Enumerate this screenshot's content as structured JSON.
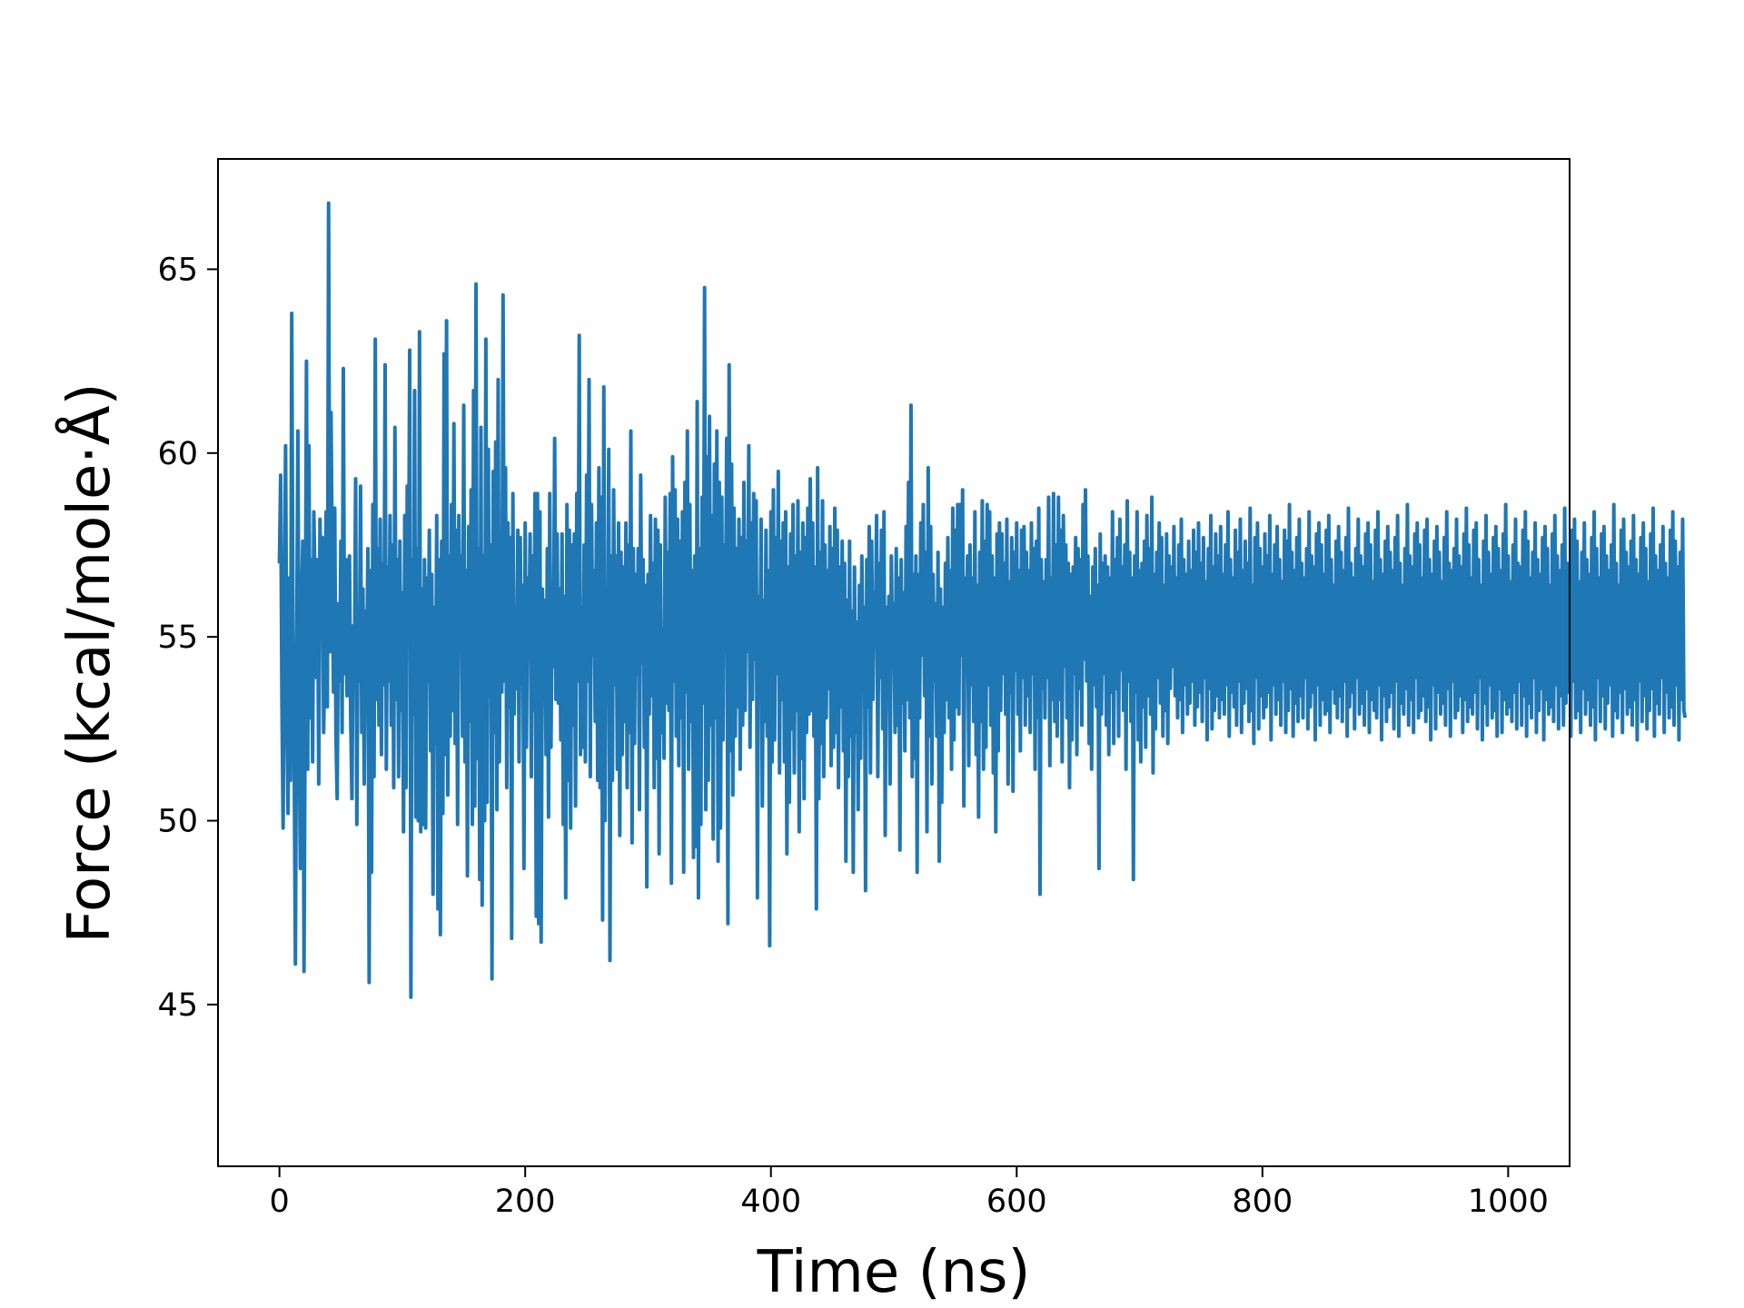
{
  "chart_data": {
    "type": "line",
    "title": "",
    "xlabel": "Time (ns)",
    "ylabel": "Force (kcal/mole·Å)",
    "xlim": [
      -50,
      1050
    ],
    "ylim": [
      40.6,
      68.0
    ],
    "grid": false,
    "x_ticks": [
      0,
      200,
      400,
      600,
      800,
      1000
    ],
    "x_tick_labels": [
      "0",
      "200",
      "400",
      "600",
      "800",
      "1000"
    ],
    "y_ticks": [
      45,
      50,
      55,
      60,
      65
    ],
    "y_tick_labels": [
      "45",
      "50",
      "55",
      "60",
      "65"
    ],
    "series": [
      {
        "color": "#1f77b4",
        "x_start": 0,
        "x_step": 1,
        "values": [
          57.0,
          59.4,
          53.4,
          49.8,
          55.7,
          60.2,
          53.1,
          50.2,
          56.6,
          51.1,
          63.8,
          55.2,
          51.8,
          46.1,
          54.3,
          60.6,
          52.9,
          48.7,
          55.9,
          57.6,
          45.9,
          53.8,
          62.5,
          51.4,
          60.2,
          52.8,
          57.1,
          51.6,
          58.4,
          56.3,
          53.9,
          57.1,
          51.0,
          58.2,
          55.3,
          57.7,
          52.4,
          54.8,
          58.4,
          53.1,
          66.8,
          54.6,
          61.1,
          56.9,
          53.5,
          58.5,
          52.3,
          50.6,
          55.9,
          53.8,
          57.6,
          52.4,
          62.3,
          54.0,
          57.1,
          53.4,
          56.8,
          57.2,
          52.8,
          50.6,
          55.3,
          53.7,
          59.3,
          49.9,
          55.8,
          53.8,
          59.1,
          52.4,
          56.3,
          51.0,
          55.7,
          53.9,
          57.4,
          45.6,
          56.8,
          48.6,
          58.6,
          51.2,
          63.1,
          53.3,
          57.4,
          52.6,
          58.2,
          51.8,
          57.0,
          53.7,
          62.4,
          51.4,
          56.9,
          53.8,
          58.3,
          52.6,
          57.5,
          50.9,
          60.7,
          53.3,
          57.1,
          51.2,
          57.6,
          53.0,
          56.2,
          49.7,
          58.3,
          50.9,
          59.1,
          55.2,
          62.8,
          45.2,
          57.1,
          52.9,
          61.7,
          50.1,
          57.4,
          50.0,
          63.3,
          49.7,
          56.3,
          49.9,
          57.1,
          49.8,
          56.6,
          53.8,
          57.9,
          51.9,
          56.7,
          48.0,
          55.8,
          52.1,
          58.3,
          47.6,
          57.1,
          46.9,
          57.6,
          50.2,
          62.7,
          51.8,
          63.6,
          50.7,
          57.2,
          52.3,
          58.6,
          53.0,
          60.8,
          52.1,
          57.9,
          49.9,
          58.3,
          54.6,
          57.2,
          52.3,
          61.3,
          51.6,
          56.8,
          48.5,
          58.0,
          52.7,
          59.0,
          49.9,
          61.7,
          50.4,
          64.6,
          51.7,
          57.4,
          48.4,
          60.7,
          47.7,
          57.2,
          50.0,
          63.1,
          50.5,
          60.1,
          53.4,
          57.5,
          45.7,
          59.5,
          52.4,
          60.3,
          50.3,
          62.0,
          51.6,
          57.5,
          53.5,
          64.3,
          53.8,
          59.6,
          50.9,
          58.1,
          53.1,
          57.7,
          46.8,
          58.9,
          52.9,
          55.8,
          53.6,
          57.9,
          51.6,
          57.7,
          53.7,
          56.4,
          48.7,
          58.1,
          52.0,
          56.6,
          54.7,
          57.8,
          51.2,
          57.2,
          53.0,
          58.9,
          47.4,
          58.9,
          47.2,
          58.4,
          46.7,
          56.3,
          54.1,
          56.0,
          51.8,
          57.4,
          50.1,
          58.9,
          52.0,
          56.3,
          54.2,
          60.4,
          53.3,
          57.8,
          53.2,
          56.3,
          52.2,
          57.8,
          49.9,
          56.1,
          47.9,
          58.6,
          51.1,
          57.9,
          49.8,
          57.5,
          52.6,
          57.8,
          50.4,
          58.9,
          53.8,
          63.2,
          51.8,
          55.8,
          52.0,
          57.5,
          51.6,
          59.4,
          53.8,
          62.0,
          51.2,
          58.6,
          54.5,
          56.8,
          52.7,
          58.1,
          51.1,
          59.6,
          50.9,
          58.8,
          47.3,
          61.8,
          50.0,
          56.3,
          53.2,
          60.1,
          46.2,
          57.2,
          51.1,
          59.0,
          53.7,
          57.2,
          51.4,
          58.1,
          49.6,
          57.3,
          51.8,
          56.9,
          52.7,
          58.1,
          50.9,
          57.5,
          52.4,
          60.6,
          49.4,
          57.4,
          52.1,
          56.7,
          54.0,
          57.4,
          50.3,
          59.4,
          54.3,
          57.1,
          52.0,
          56.4,
          48.2,
          56.7,
          52.9,
          58.3,
          53.4,
          57.0,
          50.9,
          58.2,
          51.7,
          57.9,
          49.1,
          57.5,
          52.4,
          55.2,
          51.7,
          58.8,
          53.2,
          57.3,
          53.0,
          58.9,
          48.3,
          59.9,
          53.8,
          59.0,
          52.3,
          58.2,
          51.5,
          57.6,
          52.8,
          58.4,
          48.6,
          59.2,
          53.5,
          60.6,
          51.4,
          58.6,
          52.7,
          56.8,
          49.0,
          57.2,
          49.3,
          61.4,
          47.9,
          57.4,
          49.9,
          58.8,
          53.2,
          64.5,
          50.3,
          59.9,
          51.1,
          61.0,
          52.6,
          58.3,
          49.5,
          59.7,
          52.8,
          60.6,
          48.9,
          59.2,
          49.8,
          58.8,
          52.2,
          57.5,
          55.1,
          60.4,
          47.2,
          62.4,
          51.9,
          59.7,
          50.7,
          58.5,
          52.3,
          57.4,
          53.1,
          58.2,
          51.4,
          57.7,
          52.6,
          59.2,
          53.0,
          57.6,
          54.6,
          60.2,
          52.0,
          58.1,
          53.3,
          58.9,
          54.4,
          58.7,
          47.9,
          56.1,
          53.9,
          58.2,
          50.4,
          56.0,
          52.7,
          57.9,
          52.3,
          56.8,
          46.6,
          58.4,
          51.6,
          59.0,
          52.2,
          57.7,
          54.0,
          59.5,
          51.3,
          57.6,
          53.3,
          58.1,
          51.6,
          58.4,
          49.1,
          56.9,
          50.5,
          57.8,
          52.5,
          58.6,
          51.3,
          57.2,
          53.0,
          58.7,
          49.7,
          57.3,
          51.7,
          58.1,
          50.6,
          57.7,
          52.4,
          58.5,
          52.9,
          59.3,
          53.0,
          58.1,
          52.3,
          56.9,
          47.6,
          59.6,
          50.6,
          57.3,
          52.1,
          58.7,
          51.2,
          57.5,
          52.8,
          56.8,
          53.6,
          58.0,
          51.5,
          57.4,
          52.0,
          58.5,
          52.4,
          57.9,
          50.9,
          56.9,
          53.1,
          57.6,
          51.9,
          57.0,
          48.9,
          56.0,
          51.2,
          57.6,
          52.3,
          55.7,
          48.6,
          56.9,
          52.4,
          55.4,
          50.3,
          56.4,
          51.7,
          57.2,
          54.2,
          55.8,
          48.1,
          57.1,
          53.1,
          58.0,
          51.3,
          57.6,
          53.3,
          56.2,
          54.9,
          58.3,
          51.2,
          57.0,
          53.9,
          57.9,
          52.5,
          58.4,
          49.6,
          55.8,
          53.6,
          56.1,
          51.0,
          57.2,
          54.3,
          55.9,
          52.4,
          57.4,
          52.6,
          56.6,
          49.2,
          57.1,
          53.2,
          56.2,
          51.9,
          58.0,
          53.3,
          59.2,
          52.8,
          61.3,
          51.2,
          56.7,
          51.7,
          57.2,
          48.6,
          56.7,
          52.8,
          58.1,
          54.5,
          58.6,
          53.4,
          57.3,
          49.7,
          59.6,
          52.3,
          58.0,
          51.0,
          56.7,
          53.8,
          55.9,
          52.3,
          57.3,
          48.9,
          56.3,
          50.5,
          55.8,
          52.4,
          57.0,
          53.3,
          57.7,
          52.8,
          56.8,
          51.4,
          58.5,
          52.2,
          57.9,
          53.1,
          58.6,
          52.9,
          58.6,
          54.5,
          59.0,
          50.4,
          56.6,
          54.0,
          57.2,
          51.5,
          57.5,
          53.7,
          56.6,
          52.7,
          58.4,
          51.8,
          56.4,
          50.1,
          57.3,
          52.7,
          58.7,
          51.4,
          57.6,
          52.0,
          58.6,
          53.7,
          58.4,
          52.6,
          57.2,
          51.3,
          56.6,
          49.7,
          57.8,
          51.9,
          58.1,
          53.0,
          57.8,
          54.0,
          57.0,
          52.9,
          58.2,
          51.0,
          56.5,
          53.5,
          57.7,
          50.8,
          57.3,
          54.1,
          58.1,
          52.9,
          56.8,
          51.9,
          57.9,
          53.9,
          58.0,
          52.6,
          57.3,
          53.4,
          56.8,
          52.4,
          58.1,
          54.0,
          57.4,
          51.4,
          57.6,
          52.8,
          58.5,
          48.0,
          57.1,
          53.6,
          56.5,
          52.8,
          57.1,
          53.9,
          58.8,
          51.5,
          56.6,
          53.3,
          58.9,
          52.7,
          57.5,
          52.3,
          58.8,
          53.3,
          57.9,
          51.6,
          58.3,
          54.2,
          57.5,
          52.8,
          57.0,
          50.9,
          56.7,
          52.2,
          56.9,
          54.0,
          57.7,
          51.8,
          57.4,
          53.6,
          57.1,
          52.6,
          58.6,
          54.4,
          59.0,
          53.8,
          57.2,
          52.1,
          56.1,
          51.4,
          56.9,
          53.7,
          57.4,
          53.1,
          56.4,
          48.7,
          57.8,
          52.9,
          57.0,
          54.0,
          57.2,
          52.6,
          56.9,
          51.8,
          56.6,
          53.5,
          58.4,
          52.1,
          57.1,
          53.6,
          57.7,
          52.3,
          58.2,
          54.1,
          56.9,
          53.0,
          57.5,
          51.4,
          58.7,
          53.8,
          57.3,
          52.7,
          56.6,
          48.4,
          57.2,
          53.5,
          58.4,
          52.2,
          56.8,
          51.6,
          57.0,
          53.1,
          57.6,
          52.0,
          58.3,
          53.4,
          57.4,
          52.9,
          58.8,
          51.3,
          56.7,
          52.5,
          57.3,
          53.9,
          58.1,
          53.2,
          57.7,
          52.3,
          56.4,
          53.0,
          57.8,
          52.1,
          57.2,
          53.6,
          56.9,
          54.2,
          58.0,
          53.4,
          56.6,
          52.8,
          57.5,
          53.3,
          58.2,
          52.4,
          57.1,
          53.7,
          56.7,
          52.9,
          57.6,
          53.2,
          56.8,
          53.8,
          57.9,
          52.6,
          57.3,
          53.1,
          58.1,
          53.5,
          57.0,
          52.7,
          57.7,
          53.9,
          56.5,
          52.2,
          57.4,
          53.6,
          58.3,
          52.5,
          56.9,
          53.0,
          57.8,
          53.4,
          57.2,
          52.8,
          58.0,
          53.3,
          56.7,
          52.9,
          57.5,
          53.7,
          58.4,
          52.3,
          57.1,
          53.5,
          56.6,
          53.1,
          57.9,
          52.6,
          57.3,
          53.8,
          58.2,
          52.4,
          56.8,
          53.2,
          57.6,
          53.6,
          57.0,
          52.7,
          58.5,
          53.0,
          56.4,
          52.1,
          57.7,
          53.9,
          58.1,
          52.5,
          57.4,
          53.4,
          56.9,
          52.8,
          57.8,
          53.1,
          57.2,
          53.5,
          58.3,
          52.2,
          56.7,
          53.7,
          57.5,
          52.9,
          58.0,
          53.3,
          57.1,
          52.6,
          56.5,
          53.8,
          57.9,
          52.4,
          57.6,
          53.0,
          58.6,
          53.6,
          57.3,
          52.3,
          56.8,
          53.2,
          57.7,
          52.7,
          58.2,
          53.4,
          57.0,
          52.8,
          56.6,
          53.9,
          57.4,
          52.5,
          58.4,
          53.1,
          57.2,
          53.5,
          56.9,
          52.2,
          57.8,
          53.7,
          58.1,
          52.6,
          57.5,
          53.3,
          56.7,
          52.9,
          57.9,
          53.0,
          58.3,
          52.4,
          57.1,
          53.6,
          56.4,
          53.2,
          57.6,
          52.8,
          58.0,
          53.4,
          57.3,
          52.7,
          56.8,
          53.8,
          57.7,
          52.3,
          58.5,
          53.1,
          57.0,
          53.5,
          56.6,
          52.5,
          57.4,
          53.9,
          58.2,
          52.9,
          57.2,
          53.2,
          56.9,
          52.6,
          57.8,
          53.6,
          58.1,
          52.4,
          57.5,
          53.3,
          56.5,
          53.0,
          57.9,
          52.8,
          58.4,
          53.7,
          57.1,
          52.2,
          56.7,
          53.4,
          57.6,
          52.7,
          58.0,
          53.1,
          57.3,
          53.5,
          56.8,
          52.5,
          57.7,
          53.8,
          58.3,
          52.3,
          57.0,
          53.2,
          56.4,
          52.9,
          57.4,
          53.6,
          58.6,
          52.6,
          57.2,
          53.3,
          56.9,
          52.4,
          57.8,
          53.9,
          58.1,
          52.8,
          57.5,
          53.0,
          56.6,
          53.4,
          57.9,
          52.7,
          58.2,
          53.1,
          57.1,
          52.2,
          56.7,
          53.7,
          57.6,
          52.5,
          58.0,
          53.5,
          57.3,
          52.9,
          56.5,
          53.2,
          57.7,
          52.6,
          58.4,
          53.6,
          57.0,
          52.3,
          56.8,
          53.8,
          57.4,
          52.8,
          58.2,
          53.0,
          57.2,
          53.4,
          56.9,
          52.4,
          57.8,
          53.3,
          58.5,
          52.7,
          57.5,
          53.1,
          56.6,
          52.9,
          57.9,
          53.5,
          58.1,
          52.5,
          57.1,
          53.9,
          56.4,
          52.2,
          57.6,
          53.2,
          58.3,
          52.6,
          57.3,
          53.7,
          56.7,
          52.8,
          57.7,
          53.0,
          58.0,
          52.3,
          57.4,
          53.6,
          56.8,
          52.4,
          57.8,
          53.3,
          58.6,
          52.9,
          57.2,
          53.1,
          56.5,
          52.7,
          57.5,
          53.5,
          58.2,
          52.5,
          57.0,
          53.8,
          56.9,
          52.6,
          57.9,
          53.4,
          58.4,
          52.3,
          57.6,
          53.2,
          56.6,
          52.8,
          57.3,
          53.9,
          58.1,
          52.4,
          57.1,
          53.0,
          56.7,
          53.6,
          57.7,
          52.2,
          58.0,
          53.3,
          57.4,
          52.9,
          56.4,
          53.1,
          57.8,
          52.7,
          58.3,
          53.7,
          57.2,
          52.5,
          56.8,
          53.4,
          57.5,
          52.6,
          58.5,
          53.2,
          57.0,
          53.5,
          56.9,
          52.3,
          57.9,
          53.8,
          58.2,
          52.8,
          57.6,
          53.0,
          56.5,
          52.4,
          57.3,
          53.6,
          58.1,
          52.9,
          57.1,
          53.3,
          56.7,
          52.6,
          57.7,
          53.1,
          58.4,
          52.2,
          57.4,
          53.9,
          56.6,
          52.7,
          57.8,
          53.4,
          58.0,
          52.5,
          57.2,
          53.2,
          56.8,
          53.7,
          57.5,
          52.3,
          58.6,
          53.0,
          57.0,
          52.8,
          56.4,
          53.5,
          57.9,
          52.4,
          58.2,
          53.6,
          57.3,
          52.9,
          56.9,
          53.1,
          57.6,
          52.6,
          58.3,
          53.3,
          57.1,
          52.2,
          56.7,
          53.8,
          57.7,
          52.7,
          58.1,
          53.4,
          57.4,
          52.5,
          56.5,
          53.0,
          57.8,
          53.6,
          58.5,
          52.3,
          57.2,
          53.2,
          56.8,
          52.9,
          57.5,
          53.9,
          58.0,
          52.4,
          57.0,
          53.5,
          56.6,
          52.8,
          57.9,
          53.1,
          58.4,
          52.6,
          57.6,
          53.7,
          56.9,
          52.2,
          57.3,
          53.3,
          58.2,
          53.0,
          52.8
        ]
      }
    ]
  }
}
